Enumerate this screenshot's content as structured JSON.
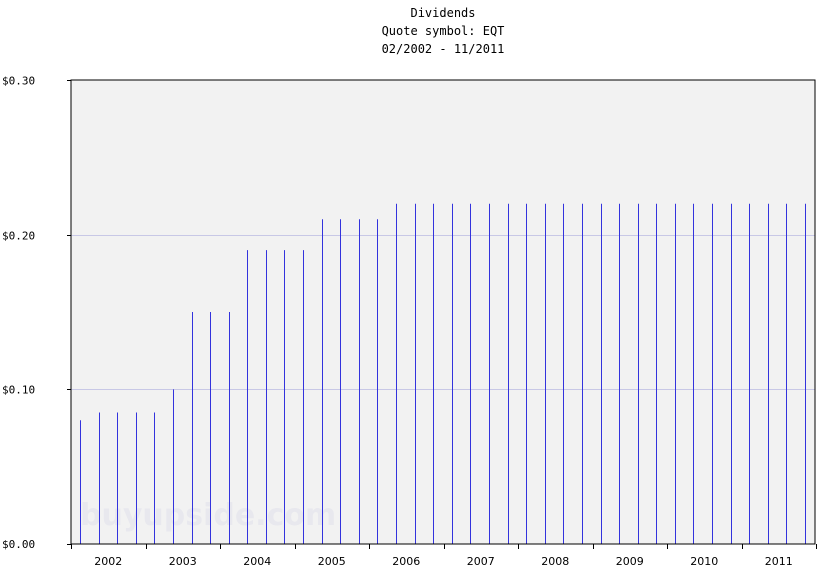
{
  "chart_data": {
    "type": "bar",
    "title": "Dividends",
    "subtitle": "Quote symbol: EQT",
    "date_range": "02/2002 - 11/2011",
    "ylim": [
      0,
      0.3
    ],
    "y_ticks": [
      {
        "value": 0.0,
        "label": "$0.00"
      },
      {
        "value": 0.1,
        "label": "$0.10"
      },
      {
        "value": 0.2,
        "label": "$0.20"
      },
      {
        "value": 0.3,
        "label": "$0.30"
      }
    ],
    "x_ticks": [
      "2002",
      "2003",
      "2004",
      "2005",
      "2006",
      "2007",
      "2008",
      "2009",
      "2010",
      "2011"
    ],
    "watermark": "buyupside.com",
    "grid": true,
    "colors": {
      "bars": "#3333dd",
      "plot_bg": "#f2f2f2",
      "grid": "#c8c8e6"
    },
    "values": [
      0.08,
      0.085,
      0.085,
      0.085,
      0.085,
      0.1,
      0.15,
      0.15,
      0.15,
      0.19,
      0.19,
      0.19,
      0.19,
      0.21,
      0.21,
      0.21,
      0.21,
      0.22,
      0.22,
      0.22,
      0.22,
      0.22,
      0.22,
      0.22,
      0.22,
      0.22,
      0.22,
      0.22,
      0.22,
      0.22,
      0.22,
      0.22,
      0.22,
      0.22,
      0.22,
      0.22,
      0.22,
      0.22,
      0.22,
      0.22
    ]
  }
}
